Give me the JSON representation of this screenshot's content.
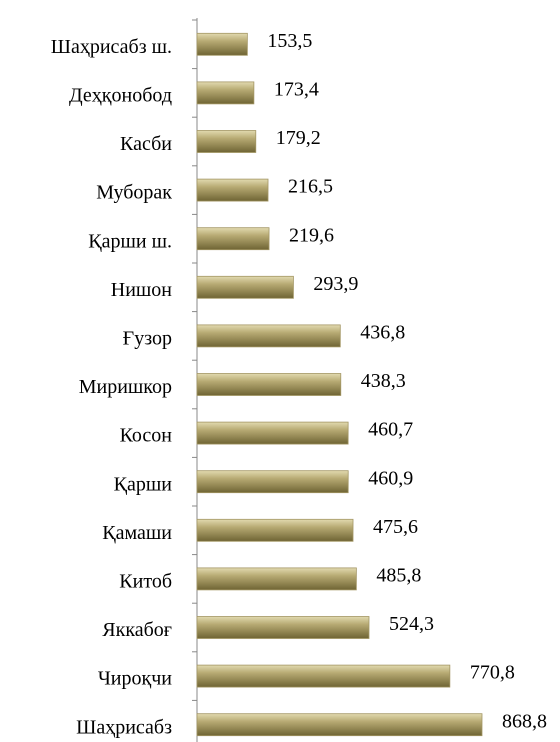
{
  "chart_data": {
    "type": "bar",
    "orientation": "horizontal",
    "categories": [
      "Шаҳрисабз ш.",
      "Деҳқонобод",
      "Касби",
      "Муборак",
      "Қарши ш.",
      "Нишон",
      "Ғузор",
      "Миришкор",
      "Косон",
      "Қарши",
      "Қамаши",
      "Китоб",
      "Яккабоғ",
      "Чироқчи",
      "Шаҳрисабз"
    ],
    "values": [
      153.5,
      173.4,
      179.2,
      216.5,
      219.6,
      293.9,
      436.8,
      438.3,
      460.7,
      460.9,
      475.6,
      485.8,
      524.3,
      770.8,
      868.8
    ],
    "value_labels": [
      "153,5",
      "173,4",
      "179,2",
      "216,5",
      "219,6",
      "293,9",
      "436,8",
      "438,3",
      "460,7",
      "460,9",
      "475,6",
      "485,8",
      "524,3",
      "770,8",
      "868,8"
    ],
    "color": "#a39664"
  }
}
